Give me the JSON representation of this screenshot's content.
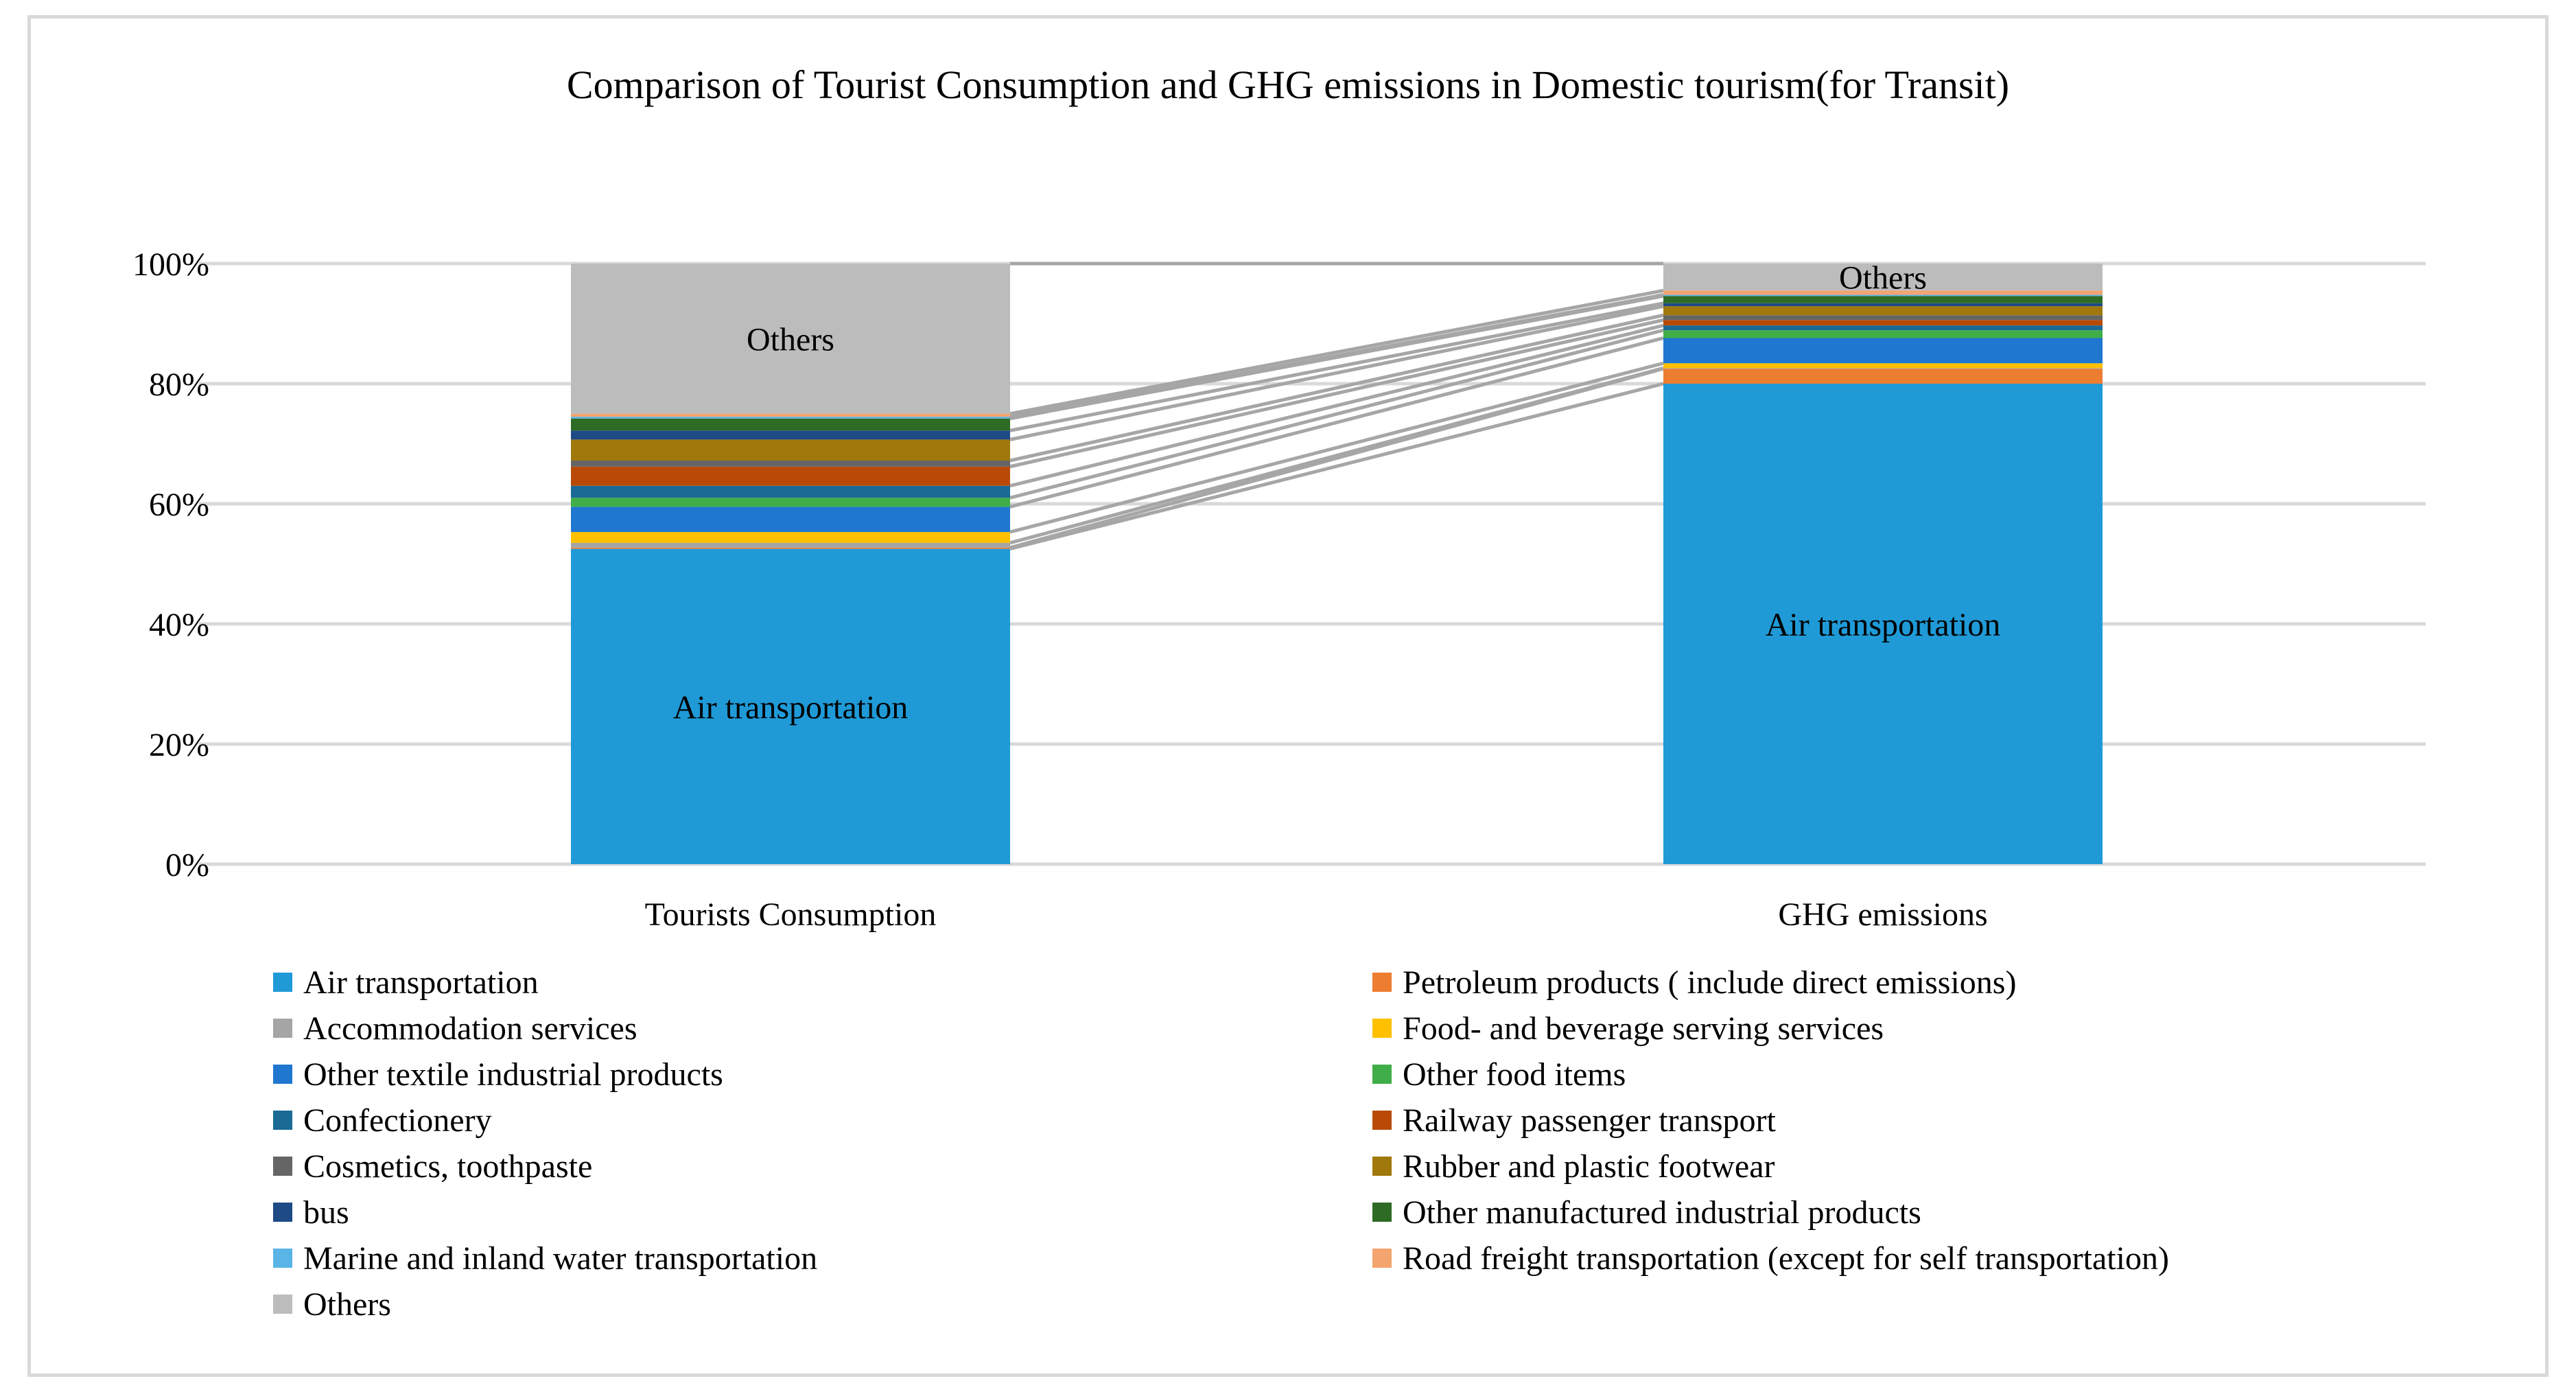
{
  "chart_data": {
    "type": "bar",
    "stacked": true,
    "percent_stacked": true,
    "title": "Comparison of  Tourist Consumption and GHG emissions in Domestic tourism(for Transit)",
    "categories": [
      "Tourists Consumption",
      "GHG emissions"
    ],
    "y_ticks": [
      "0%",
      "20%",
      "40%",
      "60%",
      "80%",
      "100%"
    ],
    "ylim": [
      0,
      100
    ],
    "grid": true,
    "legend_position": "bottom",
    "series": [
      {
        "name": "Air transportation",
        "color": "#1f9ad7",
        "values": [
          52.5,
          80.0
        ]
      },
      {
        "name": "Petroleum products ( include direct emissions)",
        "color": "#ed7d31",
        "values": [
          0.2,
          2.5
        ]
      },
      {
        "name": "Accommodation services",
        "color": "#a5a5a5",
        "values": [
          0.8,
          0.1
        ]
      },
      {
        "name": "Food- and beverage serving services",
        "color": "#ffc000",
        "values": [
          1.8,
          0.8
        ]
      },
      {
        "name": "Other textile industrial products",
        "color": "#1f77d0",
        "values": [
          4.2,
          4.2
        ]
      },
      {
        "name": "Other food items",
        "color": "#3fae49",
        "values": [
          1.5,
          1.3
        ]
      },
      {
        "name": "Confectionery",
        "color": "#1b6a96",
        "values": [
          2.0,
          0.8
        ]
      },
      {
        "name": "Railway passenger transport",
        "color": "#b84a06",
        "values": [
          3.2,
          0.9
        ]
      },
      {
        "name": "Cosmetics, toothpaste",
        "color": "#656565",
        "values": [
          1.0,
          0.8
        ]
      },
      {
        "name": "Rubber and plastic footwear",
        "color": "#a0780c",
        "values": [
          3.5,
          1.5
        ]
      },
      {
        "name": "bus",
        "color": "#1e4a86",
        "values": [
          1.5,
          0.5
        ]
      },
      {
        "name": "Other manufactured industrial products",
        "color": "#2e6b25",
        "values": [
          2.0,
          1.2
        ]
      },
      {
        "name": "Marine and inland water transportation",
        "color": "#5ab4e5",
        "values": [
          0.3,
          0.2
        ]
      },
      {
        "name": "Road freight transportation (except for self transportation)",
        "color": "#f4a46e",
        "values": [
          0.5,
          0.7
        ]
      },
      {
        "name": "Others",
        "color": "#bcbcbc",
        "values": [
          25.0,
          4.5
        ]
      }
    ],
    "data_labels": [
      {
        "category": "Tourists Consumption",
        "series": "Others",
        "text": "Others"
      },
      {
        "category": "Tourists Consumption",
        "series": "Air transportation",
        "text": "Air transportation"
      },
      {
        "category": "GHG emissions",
        "series": "Others",
        "text": "Others"
      },
      {
        "category": "GHG emissions",
        "series": "Air transportation",
        "text": "Air transportation"
      }
    ],
    "series_lines": true,
    "series_line_color": "#a6a6a6"
  }
}
